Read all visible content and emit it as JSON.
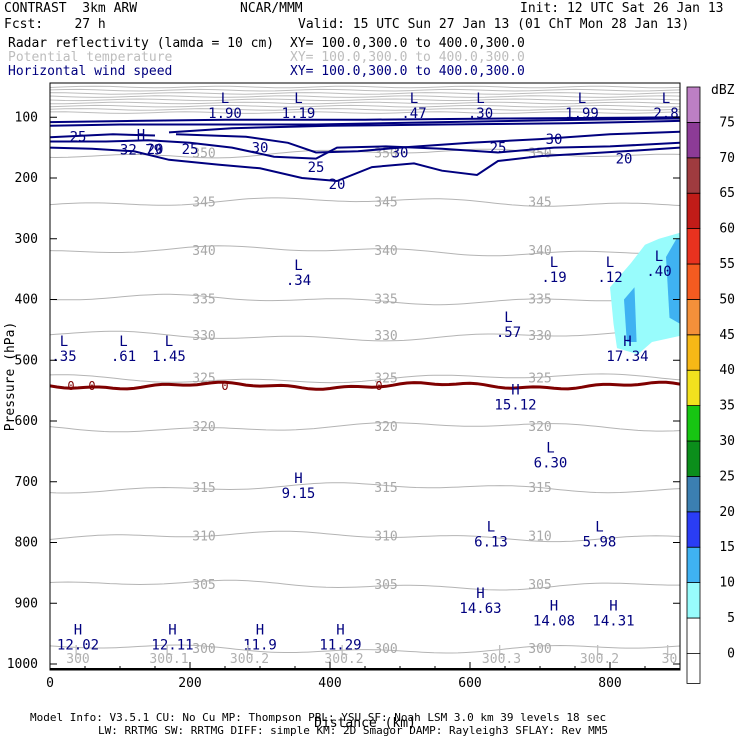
{
  "header": {
    "line1_left": "CONTRAST  3km ARW",
    "line1_center": "NCAR/MMM",
    "line1_right": "Init: 12 UTC Sat 26 Jan 13",
    "line2_left": "Fcst:    27 h",
    "line2_right": "Valid: 15 UTC Sun 27 Jan 13 (01 ChT Mon 28 Jan 13)",
    "field1_label": "Radar reflectivity (lamda = 10 cm)",
    "field1_xy": "XY= 100.0,300.0 to 400.0,300.0",
    "field2_label": "Potential temperature",
    "field2_xy": "XY= 100.0,300.0 to 400.0,300.0",
    "field3_label": "Horizontal wind speed",
    "field3_xy": "XY= 100.0,300.0 to 400.0,300.0"
  },
  "footer": {
    "line1": "Model Info: V3.5.1    CU: No Cu    MP: Thompson   PBL: YSU      SF: Noah LSM      3.0 km   39 levels   18 sec",
    "line2": "LW: RRTMG    SW: RRTMG   DIFF: simple KM: 2D Smagor DAMP: Rayleigh3   SFLAY: Rev MM5",
    "xlabel": "Distance (km)"
  },
  "colorbar": {
    "unit": "dBZ",
    "levels": [
      "0",
      "5",
      "10",
      "15",
      "20",
      "25",
      "30",
      "35",
      "40",
      "45",
      "50",
      "55",
      "60",
      "65",
      "70",
      "75"
    ],
    "colors": [
      "#ffffff",
      "#98fcfc",
      "#3fb2f2",
      "#2a3df5",
      "#3b7fb1",
      "#0b8e1b",
      "#17c512",
      "#f2e11e",
      "#f7b816",
      "#f4903a",
      "#f45b20",
      "#e8321f",
      "#c11c18",
      "#9f3b3f",
      "#8c3b96",
      "#bd7fc4"
    ]
  },
  "chart_data": {
    "type": "cross-section",
    "title": "Radar reflectivity / Potential temperature / Horizontal wind speed",
    "xlabel": "Distance (km)",
    "ylabel": "Pressure (hPa)",
    "xlim": [
      0,
      900
    ],
    "ylim": [
      1000,
      60
    ],
    "x_ticks": [
      "0",
      "200",
      "400",
      "600",
      "800"
    ],
    "y_ticks": [
      "100",
      "200",
      "300",
      "400",
      "500",
      "600",
      "700",
      "800",
      "900",
      "1000"
    ],
    "theta_contours": [
      {
        "level": 350,
        "label": "350",
        "p": 160
      },
      {
        "level": 345,
        "label": "345",
        "p": 240
      },
      {
        "level": 340,
        "label": "340",
        "p": 320
      },
      {
        "level": 335,
        "label": "335",
        "p": 400
      },
      {
        "level": 330,
        "label": "330",
        "p": 460
      },
      {
        "level": 325,
        "label": "325",
        "p": 530
      },
      {
        "level": 320,
        "label": "320",
        "p": 610
      },
      {
        "level": 315,
        "label": "315",
        "p": 710
      },
      {
        "level": 310,
        "label": "310",
        "p": 790
      },
      {
        "level": 305,
        "label": "305",
        "p": 870
      },
      {
        "level": 300,
        "label": "300",
        "p": 975
      }
    ],
    "wind_contours": [
      {
        "level": 20,
        "label": "20"
      },
      {
        "level": 25,
        "label": "25"
      },
      {
        "level": 30,
        "label": "30"
      }
    ],
    "zero_contour": {
      "label": "0",
      "p": 550
    },
    "extrema_labels": [
      {
        "type": "L",
        "value": "1.90",
        "x": 250,
        "p": 80
      },
      {
        "type": "L",
        "value": "1.19",
        "x": 355,
        "p": 80
      },
      {
        "type": "L",
        "value": ".47",
        "x": 520,
        "p": 80
      },
      {
        "type": "L",
        "value": ".30",
        "x": 615,
        "p": 80
      },
      {
        "type": "L",
        "value": "1.99",
        "x": 760,
        "p": 80
      },
      {
        "type": "L",
        "value": "2.8",
        "x": 880,
        "p": 80
      },
      {
        "type": "H",
        "value": "32.79",
        "x": 130,
        "p": 140
      },
      {
        "type": "L",
        "value": ".34",
        "x": 355,
        "p": 355
      },
      {
        "type": "L",
        "value": ".19",
        "x": 720,
        "p": 350
      },
      {
        "type": "L",
        "value": ".12",
        "x": 800,
        "p": 350
      },
      {
        "type": "L",
        "value": ".40",
        "x": 870,
        "p": 340
      },
      {
        "type": "L",
        "value": ".57",
        "x": 655,
        "p": 440
      },
      {
        "type": "L",
        "value": ".35",
        "x": 20,
        "p": 480
      },
      {
        "type": "L",
        "value": ".61",
        "x": 105,
        "p": 480
      },
      {
        "type": "L",
        "value": "1.45",
        "x": 170,
        "p": 480
      },
      {
        "type": "H",
        "value": "17.34",
        "x": 825,
        "p": 480
      },
      {
        "type": "H",
        "value": "15.12",
        "x": 665,
        "p": 560
      },
      {
        "type": "L",
        "value": "6.30",
        "x": 715,
        "p": 655
      },
      {
        "type": "H",
        "value": "9.15",
        "x": 355,
        "p": 705
      },
      {
        "type": "L",
        "value": "6.13",
        "x": 630,
        "p": 785
      },
      {
        "type": "L",
        "value": "5.98",
        "x": 785,
        "p": 785
      },
      {
        "type": "H",
        "value": "14.63",
        "x": 615,
        "p": 895
      },
      {
        "type": "H",
        "value": "14.08",
        "x": 720,
        "p": 915
      },
      {
        "type": "H",
        "value": "14.31",
        "x": 805,
        "p": 915
      },
      {
        "type": "H",
        "value": "12.02",
        "x": 40,
        "p": 955
      },
      {
        "type": "H",
        "value": "12.11",
        "x": 175,
        "p": 955
      },
      {
        "type": "H",
        "value": "11.9",
        "x": 300,
        "p": 955
      },
      {
        "type": "H",
        "value": "11.29",
        "x": 415,
        "p": 955
      }
    ],
    "surface_theta_labels": [
      {
        "value": "300",
        "x": 40
      },
      {
        "value": "300.1",
        "x": 170
      },
      {
        "value": "300.2",
        "x": 285
      },
      {
        "value": "300.2",
        "x": 420
      },
      {
        "value": "300.3",
        "x": 645
      },
      {
        "value": "300.2",
        "x": 785
      },
      {
        "value": "30",
        "x": 885
      }
    ]
  }
}
